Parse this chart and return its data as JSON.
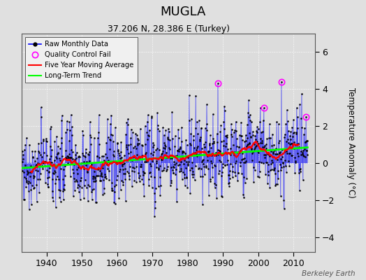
{
  "title": "MUGLA",
  "subtitle": "37.206 N, 28.386 E (Turkey)",
  "ylabel": "Temperature Anomaly (°C)",
  "attribution": "Berkeley Earth",
  "year_start": 1933,
  "year_end": 2014,
  "xlim": [
    1933,
    2016
  ],
  "ylim": [
    -4.8,
    7.0
  ],
  "yticks": [
    -4,
    -2,
    0,
    2,
    4,
    6
  ],
  "xticks": [
    1940,
    1950,
    1960,
    1970,
    1980,
    1990,
    2000,
    2010
  ],
  "seed": 77,
  "n_years": 81,
  "bg_color": "#e0e0e0",
  "plot_bg": "#dcdcdc",
  "title_fontsize": 13,
  "subtitle_fontsize": 9,
  "label_fontsize": 8.5,
  "tick_fontsize": 9,
  "qc_fail_years": [
    1988,
    2001,
    2006,
    2013
  ],
  "qc_fail_vals": [
    4.3,
    3.0,
    4.4,
    2.5
  ]
}
